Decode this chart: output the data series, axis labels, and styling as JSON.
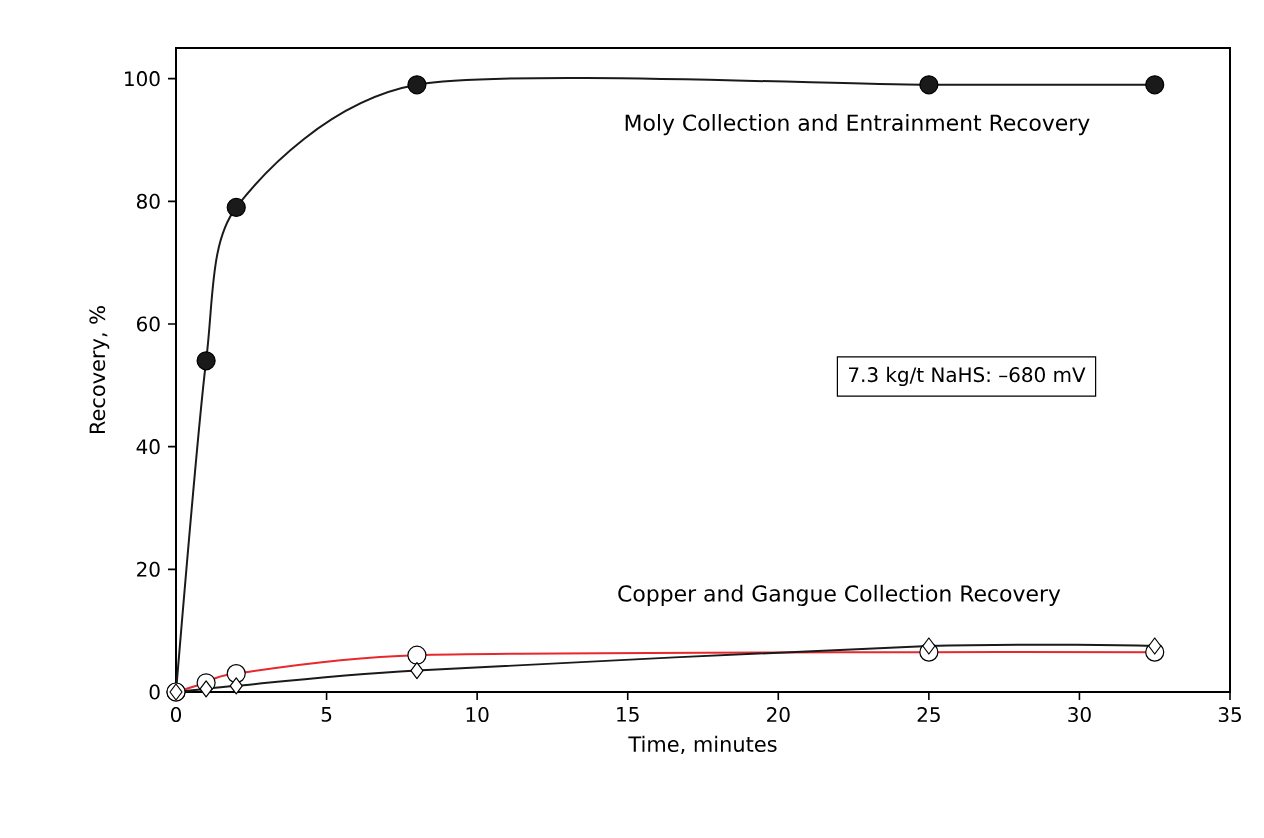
{
  "chart_data": {
    "type": "line",
    "xlabel": "Time, minutes",
    "ylabel": "Recovery, %",
    "xlim": [
      0,
      35
    ],
    "ylim": [
      0,
      105
    ],
    "xticks": [
      0,
      5,
      10,
      15,
      20,
      25,
      30,
      35
    ],
    "yticks": [
      0,
      20,
      40,
      60,
      80,
      100
    ],
    "x": [
      0,
      1,
      2,
      8,
      25,
      32.5
    ],
    "series": [
      {
        "color": "#1a1a1a",
        "marker": "circle",
        "values": [
          0,
          54,
          79,
          99,
          99,
          99
        ]
      },
      {
        "color": "#e8282c",
        "marker": "circle",
        "values": [
          0,
          1.5,
          3,
          6,
          6.5,
          6.5
        ]
      },
      {
        "color": "#1a1a1a",
        "marker": "diamond",
        "values": [
          0,
          0.5,
          1,
          3.5,
          7.5,
          7.5
        ]
      }
    ],
    "annotations": [
      "Moly Collection and Entrainment Recovery",
      "Copper and Gangue Collection Recovery",
      "7.3 kg/t NaHS:  –680 mV"
    ]
  }
}
